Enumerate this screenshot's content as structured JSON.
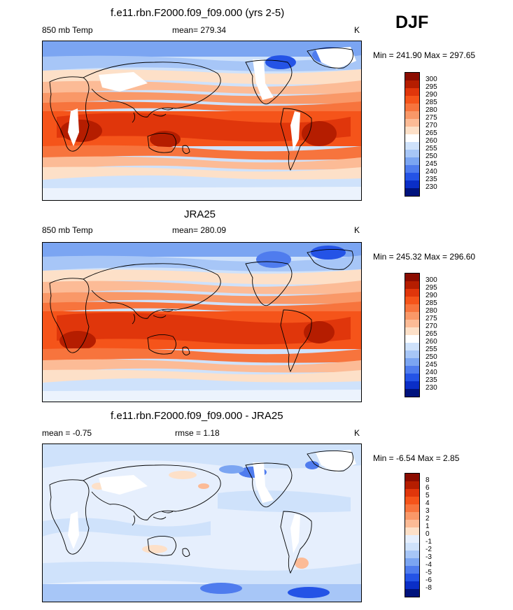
{
  "season": "DJF",
  "panels": [
    {
      "title": "f.e11.rbn.F2000.f09_f09.000 (yrs 2-5)",
      "left_label": "850 mb Temp",
      "center_label": "mean= 279.34",
      "units": "K",
      "minmax": "Min = 241.90 Max = 297.65"
    },
    {
      "title": "JRA25",
      "left_label": "850 mb Temp",
      "center_label": "mean= 280.09",
      "units": "K",
      "minmax": "Min = 245.32 Max = 296.60"
    },
    {
      "title": "f.e11.rbn.F2000.f09_f09.000 - JRA25",
      "left_label": "mean =  -0.75",
      "center_label": "rmse =   1.18",
      "units": "K",
      "minmax": "Min =  -6.54 Max =   2.85"
    }
  ],
  "colorbars": {
    "temperature": {
      "levels": [
        "300",
        "295",
        "290",
        "285",
        "280",
        "275",
        "270",
        "265",
        "260",
        "255",
        "250",
        "245",
        "240",
        "235",
        "230"
      ],
      "colors": [
        "#8b0c00",
        "#b51d00",
        "#e0360b",
        "#f5541a",
        "#f7743d",
        "#f99868",
        "#fcbb96",
        "#fde0c8",
        "#ffffff",
        "#cfe2fb",
        "#a7c6f7",
        "#7ba5f2",
        "#4f7cee",
        "#2453e6",
        "#0a2ec7",
        "#00137d"
      ]
    },
    "difference": {
      "levels": [
        "8",
        "6",
        "5",
        "4",
        "3",
        "2",
        "1",
        "0",
        "-1",
        "-2",
        "-3",
        "-4",
        "-5",
        "-6",
        "-8"
      ],
      "colors": [
        "#8b0c00",
        "#b51d00",
        "#e0360b",
        "#f5541a",
        "#f7743d",
        "#f99868",
        "#fcbb96",
        "#fde0c8",
        "#e6effd",
        "#cfe2fb",
        "#a7c6f7",
        "#7ba5f2",
        "#4f7cee",
        "#2453e6",
        "#0a2ec7",
        "#00137d"
      ]
    }
  }
}
